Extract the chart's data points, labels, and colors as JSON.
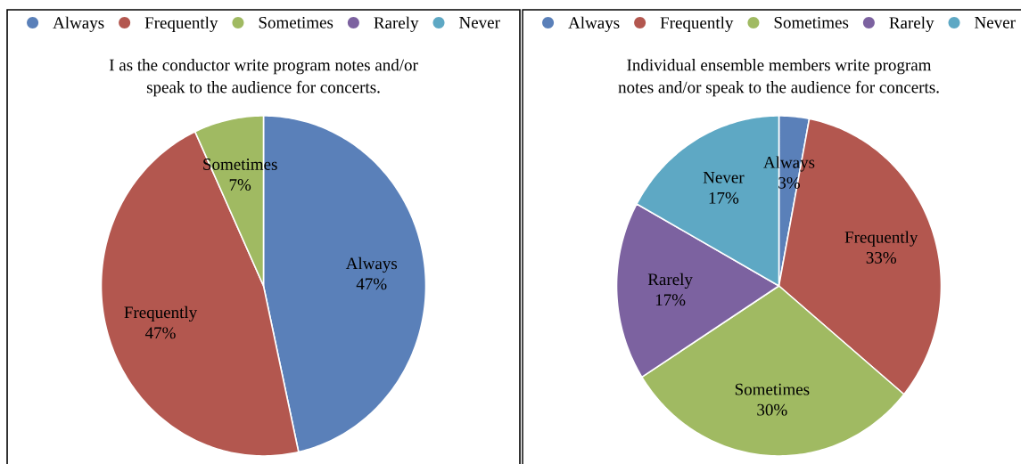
{
  "chart_data": [
    {
      "type": "pie",
      "title": "I as the conductor write program notes and/or speak to the audience for concerts.",
      "categories": [
        "Always",
        "Frequently",
        "Sometimes",
        "Rarely",
        "Never"
      ],
      "values": [
        47,
        47,
        7,
        0,
        0
      ],
      "colors": [
        "#5a80b9",
        "#b3574f",
        "#a0ba62",
        "#7c62a0",
        "#5ea8c4"
      ],
      "value_labels": [
        "47%",
        "47%",
        "7%",
        null,
        null
      ],
      "legend": "top"
    },
    {
      "type": "pie",
      "title": "Individual ensemble members write program notes and/or speak to the audience for concerts.",
      "categories": [
        "Always",
        "Frequently",
        "Sometimes",
        "Rarely",
        "Never"
      ],
      "values": [
        3,
        33,
        30,
        17,
        17
      ],
      "colors": [
        "#5a80b9",
        "#b3574f",
        "#a0ba62",
        "#7c62a0",
        "#5ea8c4"
      ],
      "value_labels": [
        "3%",
        "33%",
        "30%",
        "17%",
        "17%"
      ],
      "legend": "top"
    }
  ]
}
